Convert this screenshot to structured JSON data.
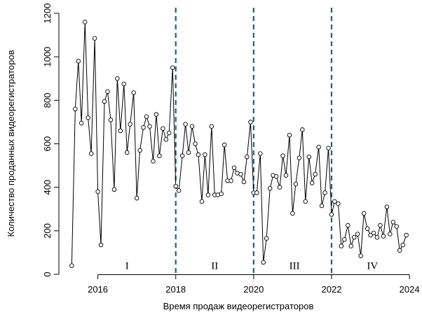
{
  "chart_data": {
    "type": "line",
    "title": "",
    "xlabel": "Время продаж видеорегистраторов",
    "ylabel": "Количество проданных видеорегистраторов",
    "xlim": [
      2015.0,
      2024.25
    ],
    "ylim": [
      0,
      1200
    ],
    "x_ticks": [
      2016,
      2018,
      2020,
      2022,
      2024
    ],
    "x_tick_labels": [
      "2016",
      "2018",
      "2020",
      "2022",
      "2024"
    ],
    "y_ticks": [
      0,
      200,
      400,
      600,
      800,
      1000,
      1200
    ],
    "y_tick_labels": [
      "0",
      "200",
      "400",
      "600",
      "800",
      "1000",
      "1200"
    ],
    "grid": false,
    "marker": "open-circle",
    "line_color": "#000000",
    "divider_color": "#1f5f8b",
    "dividers": [
      2018,
      2020,
      2022
    ],
    "periods": [
      {
        "label": "I",
        "x": 2016.75,
        "y": 40
      },
      {
        "label": "II",
        "x": 2019.0,
        "y": 40
      },
      {
        "label": "III",
        "x": 2021.05,
        "y": 40
      },
      {
        "label": "IV",
        "x": 2023.05,
        "y": 40
      }
    ],
    "series": [
      {
        "x": [
          2015.33,
          2015.42,
          2015.5,
          2015.58,
          2015.67,
          2015.75,
          2015.83,
          2015.92,
          2016.0,
          2016.08,
          2016.17,
          2016.25,
          2016.33,
          2016.42,
          2016.5,
          2016.58,
          2016.67,
          2016.75,
          2016.83,
          2016.92,
          2017.0,
          2017.08,
          2017.17,
          2017.25,
          2017.33,
          2017.42,
          2017.5,
          2017.58,
          2017.67,
          2017.75,
          2017.83,
          2017.92,
          2018.0,
          2018.08,
          2018.17,
          2018.25,
          2018.33,
          2018.42,
          2018.5,
          2018.58,
          2018.67,
          2018.75,
          2018.83,
          2018.92,
          2019.0,
          2019.08,
          2019.17,
          2019.25,
          2019.33,
          2019.42,
          2019.5,
          2019.58,
          2019.67,
          2019.75,
          2019.83,
          2019.92,
          2020.0,
          2020.08,
          2020.17,
          2020.25,
          2020.33,
          2020.42,
          2020.5,
          2020.58,
          2020.67,
          2020.75,
          2020.83,
          2020.92,
          2021.0,
          2021.08,
          2021.17,
          2021.25,
          2021.33,
          2021.42,
          2021.5,
          2021.58,
          2021.67,
          2021.75,
          2021.83,
          2021.92,
          2022.0,
          2022.08,
          2022.17,
          2022.25,
          2022.33,
          2022.42,
          2022.5,
          2022.58,
          2022.67,
          2022.75,
          2022.83,
          2022.92,
          2023.0,
          2023.08,
          2023.17,
          2023.25,
          2023.33,
          2023.42,
          2023.5,
          2023.58,
          2023.67,
          2023.75,
          2023.83,
          2023.92
        ],
        "y": [
          40,
          760,
          980,
          695,
          1160,
          720,
          555,
          1085,
          380,
          135,
          795,
          840,
          710,
          390,
          900,
          660,
          875,
          560,
          690,
          835,
          350,
          570,
          675,
          725,
          680,
          520,
          735,
          545,
          670,
          620,
          650,
          950,
          405,
          385,
          545,
          690,
          560,
          680,
          600,
          550,
          335,
          550,
          365,
          680,
          365,
          365,
          370,
          595,
          430,
          430,
          490,
          465,
          460,
          425,
          540,
          700,
          375,
          375,
          555,
          55,
          165,
          395,
          455,
          450,
          400,
          545,
          455,
          640,
          280,
          415,
          535,
          665,
          335,
          540,
          420,
          460,
          585,
          315,
          375,
          580,
          275,
          335,
          325,
          130,
          160,
          225,
          130,
          170,
          185,
          85,
          280,
          210,
          180,
          190,
          170,
          225,
          175,
          310,
          185,
          240,
          220,
          110,
          135,
          180
        ]
      }
    ]
  }
}
